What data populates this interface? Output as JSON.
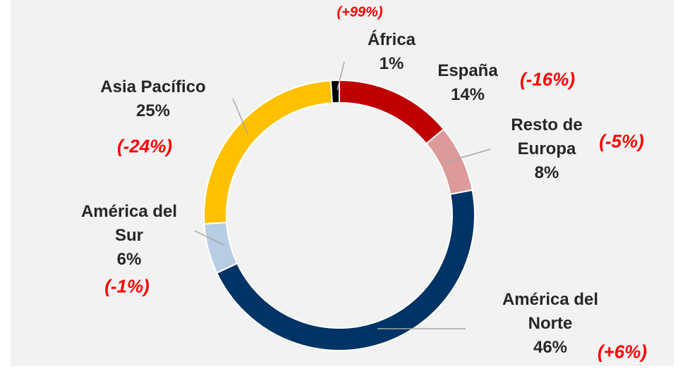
{
  "chart_data": {
    "type": "donut",
    "categories": [
      "España",
      "Resto de Europa",
      "América del Norte",
      "América del Sur",
      "Asia Pacífico",
      "África"
    ],
    "values": [
      14,
      8,
      46,
      6,
      25,
      1
    ],
    "value_labels": [
      "14%",
      "8%",
      "46%",
      "6%",
      "25%",
      "1%"
    ],
    "annotations": [
      "(-16%)",
      "(-5%)",
      "(+6%)",
      "(-1%)",
      "(-24%)",
      "(+99%)"
    ],
    "colors": [
      "#c00000",
      "#dc9a9a",
      "#003366",
      "#b8cce4",
      "#ffc000",
      "#000000"
    ]
  }
}
